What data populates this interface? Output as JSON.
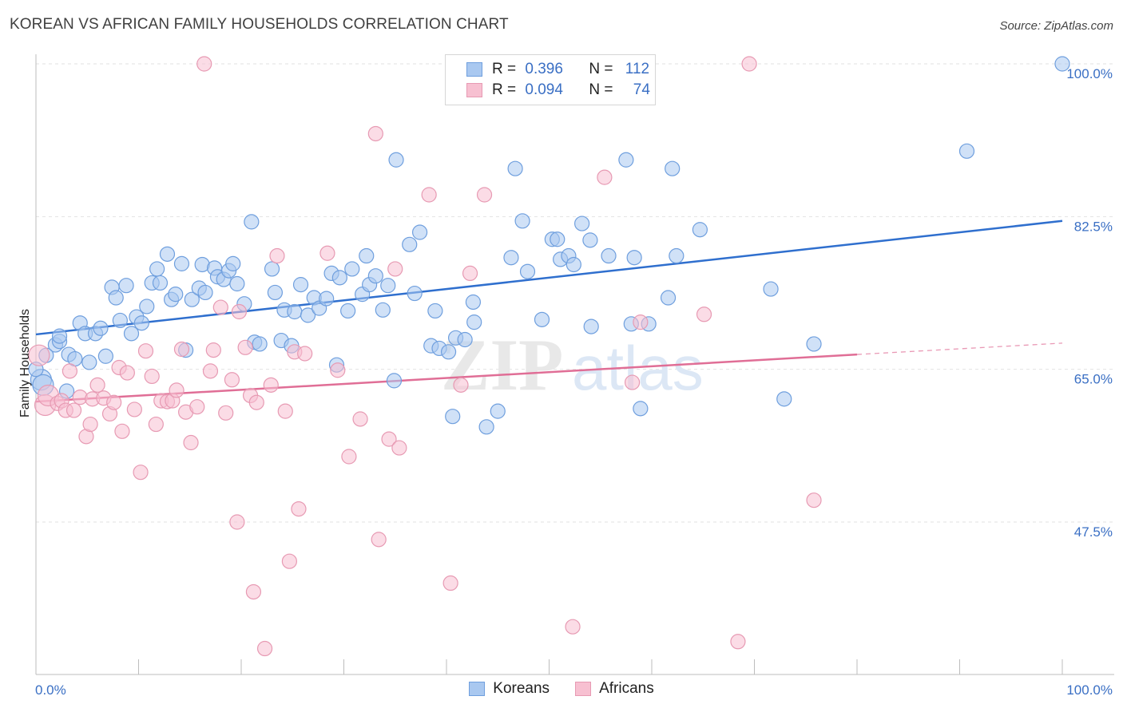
{
  "header": {
    "title": "KOREAN VS AFRICAN FAMILY HOUSEHOLDS CORRELATION CHART",
    "source": "Source: ZipAtlas.com"
  },
  "watermark": {
    "zip": "ZIP",
    "atlas": "atlas"
  },
  "legend": {
    "rows": [
      {
        "r_label": "R =",
        "r_value": "0.396",
        "n_label": "N =",
        "n_value": "112",
        "color": "#a9c8f0",
        "border": "#6f9fde"
      },
      {
        "r_label": "R =",
        "r_value": "0.094",
        "n_label": "N =",
        "n_value": "74",
        "color": "#f7c0d1",
        "border": "#e79ab3"
      }
    ]
  },
  "bottom_legend": {
    "items": [
      {
        "label": "Koreans",
        "color": "#a9c8f0",
        "border": "#6f9fde"
      },
      {
        "label": "Africans",
        "color": "#f7c0d1",
        "border": "#e79ab3"
      }
    ]
  },
  "chart_data": {
    "type": "scatter",
    "title": "KOREAN VS AFRICAN FAMILY HOUSEHOLDS CORRELATION CHART",
    "xlabel": "",
    "ylabel": "Family Households",
    "xlim": [
      0,
      100
    ],
    "ylim": [
      30,
      101.5
    ],
    "x_tick_labels": [
      "0.0%",
      "100.0%"
    ],
    "y_ticks": [
      47.5,
      65.0,
      82.5,
      100.0
    ],
    "y_tick_labels": [
      "47.5%",
      "65.0%",
      "82.5%",
      "100.0%"
    ],
    "grid": true,
    "legend_position": "top-center",
    "series": [
      {
        "name": "Koreans",
        "color": "#a9c8f0",
        "stroke": "#6f9fde",
        "trend": {
          "x": [
            0,
            100
          ],
          "y": [
            69.0,
            82.0
          ],
          "color": "#2f6fce",
          "dashed_after": null
        },
        "points": [
          [
            0.5,
            63.8
          ],
          [
            0.7,
            63.2
          ],
          [
            1.9,
            67.8
          ],
          [
            2.3,
            68.2
          ],
          [
            2.3,
            68.8
          ],
          [
            3.2,
            66.7
          ],
          [
            3.8,
            66.2
          ],
          [
            4.3,
            70.3
          ],
          [
            4.8,
            69.1
          ],
          [
            5.2,
            65.8
          ],
          [
            5.8,
            69.1
          ],
          [
            6.3,
            69.7
          ],
          [
            6.8,
            66.5
          ],
          [
            7.4,
            74.4
          ],
          [
            7.8,
            73.2
          ],
          [
            8.2,
            70.6
          ],
          [
            8.8,
            74.6
          ],
          [
            9.3,
            69.1
          ],
          [
            9.8,
            71.0
          ],
          [
            10.3,
            70.3
          ],
          [
            10.8,
            72.2
          ],
          [
            11.3,
            74.9
          ],
          [
            11.8,
            76.5
          ],
          [
            12.1,
            74.9
          ],
          [
            12.8,
            78.2
          ],
          [
            13.2,
            73.0
          ],
          [
            13.6,
            73.6
          ],
          [
            14.2,
            77.1
          ],
          [
            14.6,
            67.2
          ],
          [
            15.2,
            73.0
          ],
          [
            15.9,
            74.3
          ],
          [
            16.2,
            77.0
          ],
          [
            16.5,
            73.8
          ],
          [
            17.4,
            76.6
          ],
          [
            17.7,
            75.6
          ],
          [
            18.3,
            75.3
          ],
          [
            18.8,
            76.3
          ],
          [
            19.2,
            77.1
          ],
          [
            19.6,
            74.8
          ],
          [
            20.3,
            72.5
          ],
          [
            21.0,
            81.9
          ],
          [
            21.3,
            68.1
          ],
          [
            21.8,
            67.9
          ],
          [
            23.0,
            76.5
          ],
          [
            23.3,
            73.8
          ],
          [
            23.9,
            68.3
          ],
          [
            24.2,
            71.8
          ],
          [
            24.9,
            67.7
          ],
          [
            25.2,
            71.6
          ],
          [
            25.8,
            74.7
          ],
          [
            26.5,
            71.2
          ],
          [
            27.1,
            73.2
          ],
          [
            27.6,
            72.0
          ],
          [
            28.3,
            73.1
          ],
          [
            28.8,
            76.0
          ],
          [
            29.3,
            65.5
          ],
          [
            29.6,
            75.5
          ],
          [
            30.4,
            71.7
          ],
          [
            30.8,
            76.5
          ],
          [
            31.8,
            73.6
          ],
          [
            32.2,
            78.0
          ],
          [
            32.5,
            74.7
          ],
          [
            33.1,
            75.7
          ],
          [
            33.8,
            71.8
          ],
          [
            34.3,
            74.6
          ],
          [
            34.9,
            63.7
          ],
          [
            35.1,
            89.0
          ],
          [
            36.4,
            79.3
          ],
          [
            36.9,
            73.7
          ],
          [
            37.4,
            80.7
          ],
          [
            38.5,
            67.7
          ],
          [
            38.9,
            71.7
          ],
          [
            39.3,
            67.4
          ],
          [
            40.2,
            67.0
          ],
          [
            40.6,
            59.6
          ],
          [
            40.9,
            68.6
          ],
          [
            41.8,
            68.4
          ],
          [
            42.6,
            72.7
          ],
          [
            42.7,
            70.4
          ],
          [
            43.9,
            58.4
          ],
          [
            45.0,
            60.2
          ],
          [
            46.3,
            77.8
          ],
          [
            46.7,
            88.0
          ],
          [
            47.4,
            82.0
          ],
          [
            47.9,
            76.2
          ],
          [
            49.3,
            70.7
          ],
          [
            50.3,
            79.9
          ],
          [
            50.8,
            79.9
          ],
          [
            51.1,
            77.6
          ],
          [
            51.9,
            78.0
          ],
          [
            52.4,
            77.0
          ],
          [
            53.2,
            81.7
          ],
          [
            54.0,
            79.8
          ],
          [
            54.1,
            69.9
          ],
          [
            55.8,
            78.0
          ],
          [
            57.5,
            89.0
          ],
          [
            58.0,
            70.2
          ],
          [
            58.3,
            77.8
          ],
          [
            58.9,
            60.5
          ],
          [
            59.7,
            70.2
          ],
          [
            61.6,
            73.2
          ],
          [
            62.0,
            88.0
          ],
          [
            62.4,
            78.0
          ],
          [
            64.7,
            81.0
          ],
          [
            71.6,
            74.2
          ],
          [
            72.9,
            61.6
          ],
          [
            75.8,
            67.9
          ],
          [
            90.7,
            90.0
          ],
          [
            100.0,
            100.0
          ],
          [
            0.0,
            65.0
          ],
          [
            1.0,
            66.6
          ],
          [
            3.0,
            62.5
          ]
        ]
      },
      {
        "name": "Africans",
        "color": "#f7c0d1",
        "stroke": "#e79ab3",
        "trend": {
          "x": [
            0,
            80,
            100
          ],
          "y": [
            61.3,
            66.7,
            68.0
          ],
          "color": "#e06e96",
          "dashed_after": 80
        },
        "points": [
          [
            0.3,
            66.6
          ],
          [
            0.9,
            60.9
          ],
          [
            1.2,
            62.0
          ],
          [
            2.1,
            61.1
          ],
          [
            2.5,
            61.4
          ],
          [
            2.9,
            60.3
          ],
          [
            3.3,
            64.8
          ],
          [
            3.7,
            60.3
          ],
          [
            4.3,
            61.8
          ],
          [
            4.9,
            57.3
          ],
          [
            5.3,
            58.7
          ],
          [
            5.5,
            61.6
          ],
          [
            6.0,
            63.2
          ],
          [
            6.6,
            61.7
          ],
          [
            7.2,
            59.9
          ],
          [
            7.6,
            61.2
          ],
          [
            8.1,
            65.2
          ],
          [
            8.4,
            57.9
          ],
          [
            8.9,
            64.6
          ],
          [
            9.6,
            60.4
          ],
          [
            10.2,
            53.2
          ],
          [
            10.7,
            67.1
          ],
          [
            11.3,
            64.2
          ],
          [
            11.7,
            58.7
          ],
          [
            12.2,
            61.4
          ],
          [
            12.8,
            61.3
          ],
          [
            13.3,
            61.4
          ],
          [
            13.7,
            62.6
          ],
          [
            14.2,
            67.3
          ],
          [
            14.6,
            60.1
          ],
          [
            15.1,
            56.6
          ],
          [
            15.7,
            60.7
          ],
          [
            16.4,
            100.0
          ],
          [
            17.0,
            64.8
          ],
          [
            17.3,
            67.2
          ],
          [
            18.0,
            72.1
          ],
          [
            18.5,
            60.0
          ],
          [
            19.1,
            63.8
          ],
          [
            19.6,
            47.5
          ],
          [
            19.8,
            71.6
          ],
          [
            20.4,
            67.5
          ],
          [
            20.9,
            62.0
          ],
          [
            21.2,
            39.5
          ],
          [
            21.5,
            61.2
          ],
          [
            22.3,
            33.0
          ],
          [
            22.9,
            63.2
          ],
          [
            23.5,
            78.0
          ],
          [
            24.3,
            60.2
          ],
          [
            24.7,
            43.0
          ],
          [
            25.2,
            67.0
          ],
          [
            25.6,
            49.0
          ],
          [
            26.2,
            66.8
          ],
          [
            28.4,
            78.3
          ],
          [
            29.4,
            64.9
          ],
          [
            30.5,
            55.0
          ],
          [
            31.6,
            59.3
          ],
          [
            33.1,
            92.0
          ],
          [
            33.4,
            45.5
          ],
          [
            34.4,
            57.0
          ],
          [
            35.0,
            76.5
          ],
          [
            35.4,
            56.0
          ],
          [
            38.3,
            85.0
          ],
          [
            40.4,
            40.5
          ],
          [
            41.4,
            63.2
          ],
          [
            42.3,
            76.0
          ],
          [
            43.7,
            85.0
          ],
          [
            52.3,
            35.5
          ],
          [
            55.4,
            87.0
          ],
          [
            58.1,
            63.5
          ],
          [
            58.9,
            70.4
          ],
          [
            65.1,
            71.3
          ],
          [
            68.4,
            33.8
          ],
          [
            69.5,
            100.0
          ],
          [
            75.8,
            50.0
          ]
        ]
      }
    ]
  }
}
